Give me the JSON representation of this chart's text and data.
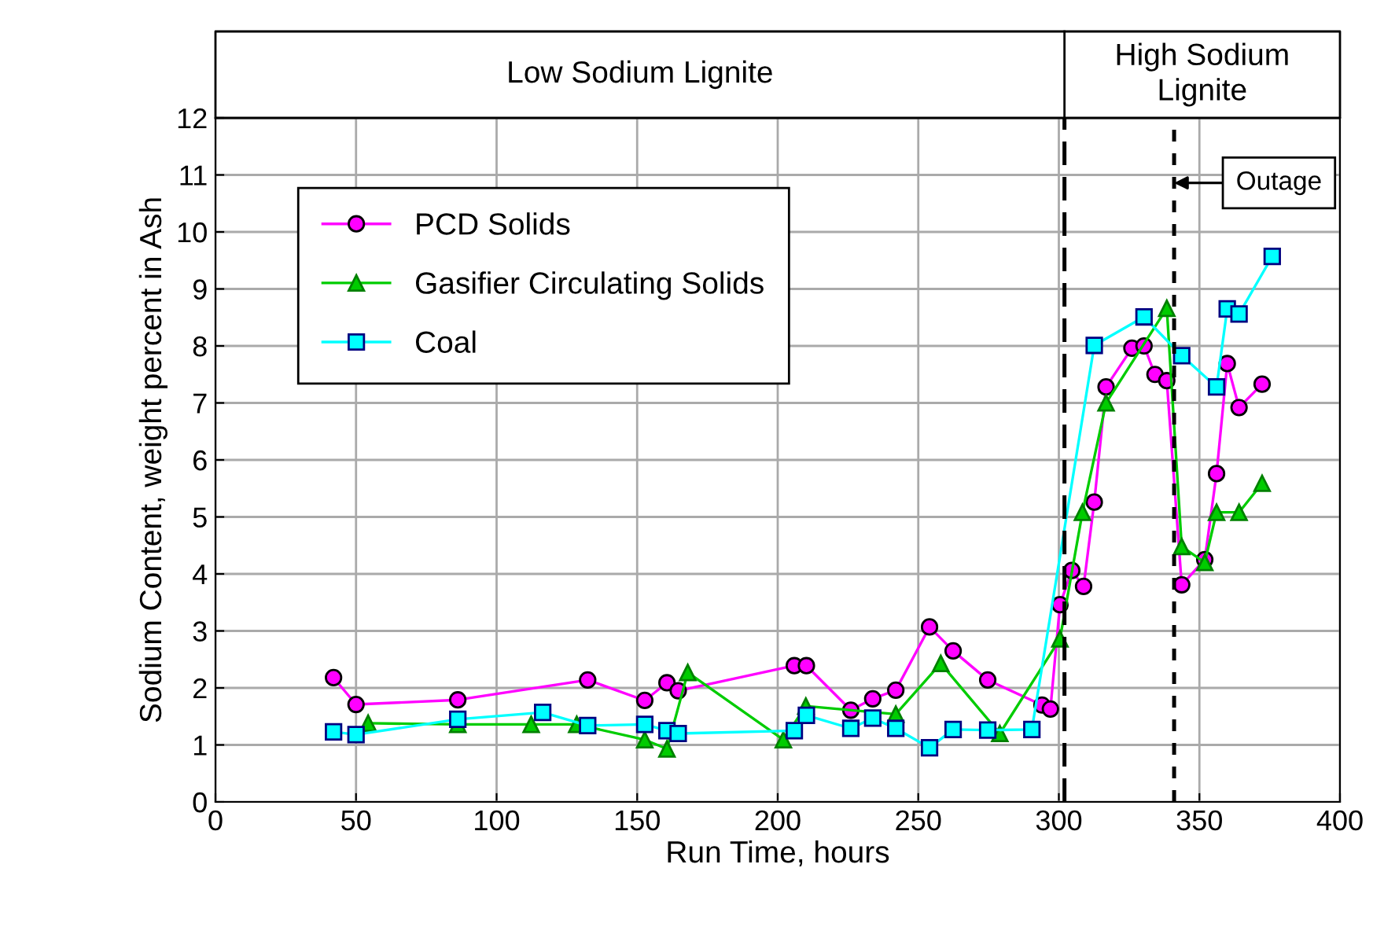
{
  "chart_data": {
    "type": "line",
    "xlabel": "Run Time, hours",
    "ylabel": "Sodium Content, weight percent in Ash",
    "xlim": [
      0,
      400
    ],
    "xticks": [
      0,
      50,
      100,
      150,
      200,
      250,
      300,
      350,
      400
    ],
    "ylim": [
      0,
      12
    ],
    "yticks": [
      0,
      1,
      2,
      3,
      4,
      5,
      6,
      7,
      8,
      9,
      10,
      11,
      12
    ],
    "grid": true,
    "legend": "top left",
    "line_style": "solid",
    "series": [
      {
        "name": "PCD Solids",
        "color": "#ff00ff",
        "marker": "circle",
        "x": [
          42,
          50,
          86.2,
          132.4,
          152.7,
          160.6,
          164.6,
          205.9,
          210.2,
          226,
          233.8,
          242,
          254,
          262.4,
          274.7,
          294,
          297,
          300.4,
          304.6,
          308.8,
          312.6,
          316.8,
          326,
          330.3,
          334.2,
          338.4,
          343.7,
          351.9,
          356.1,
          359.9,
          364.1,
          372.3
        ],
        "values": [
          2.18,
          1.71,
          1.79,
          2.14,
          1.78,
          2.09,
          1.95,
          2.39,
          2.39,
          1.61,
          1.81,
          1.96,
          3.07,
          2.65,
          2.14,
          1.7,
          1.63,
          3.46,
          4.06,
          3.78,
          5.26,
          7.28,
          7.96,
          8.0,
          7.5,
          7.39,
          3.81,
          4.25,
          5.76,
          7.69,
          6.92,
          7.33
        ]
      },
      {
        "name": "Gasifier Circulating Solids",
        "color": "#00cc00",
        "marker": "triangle",
        "x": [
          54.3,
          86.2,
          112.3,
          128.5,
          152.7,
          160.6,
          168,
          202,
          210,
          242,
          258,
          279,
          300.4,
          308.4,
          316.8,
          338.4,
          343.7,
          351.9,
          356.1,
          364.1,
          372.3
        ],
        "values": [
          1.38,
          1.36,
          1.36,
          1.36,
          1.09,
          0.93,
          2.27,
          1.09,
          1.68,
          1.54,
          2.43,
          1.2,
          2.86,
          5.08,
          7.0,
          8.66,
          4.48,
          4.2,
          5.08,
          5.08,
          5.59
        ]
      },
      {
        "name": "Coal",
        "color": "#00ffff",
        "marker": "square",
        "x": [
          42,
          50,
          86.2,
          116.4,
          132.4,
          152.7,
          160.6,
          164.6,
          205.9,
          210.2,
          226,
          233.8,
          242,
          254,
          262.4,
          274.7,
          290.4,
          312.6,
          330.3,
          343.7,
          356.1,
          359.9,
          364.1,
          375.9
        ],
        "values": [
          1.23,
          1.18,
          1.45,
          1.57,
          1.34,
          1.36,
          1.25,
          1.2,
          1.25,
          1.52,
          1.29,
          1.47,
          1.29,
          0.95,
          1.27,
          1.26,
          1.27,
          8.01,
          8.51,
          7.83,
          7.28,
          8.65,
          8.56,
          9.57
        ]
      }
    ],
    "ref_lines": [
      {
        "axis": "x",
        "value": 302,
        "label": null,
        "line_style": "dashed"
      },
      {
        "axis": "x",
        "value": 341,
        "label": "Outage",
        "line_style": "dotted"
      }
    ],
    "annotations": [
      "Low Sodium Lignite",
      "High Sodium\nLignite"
    ]
  }
}
